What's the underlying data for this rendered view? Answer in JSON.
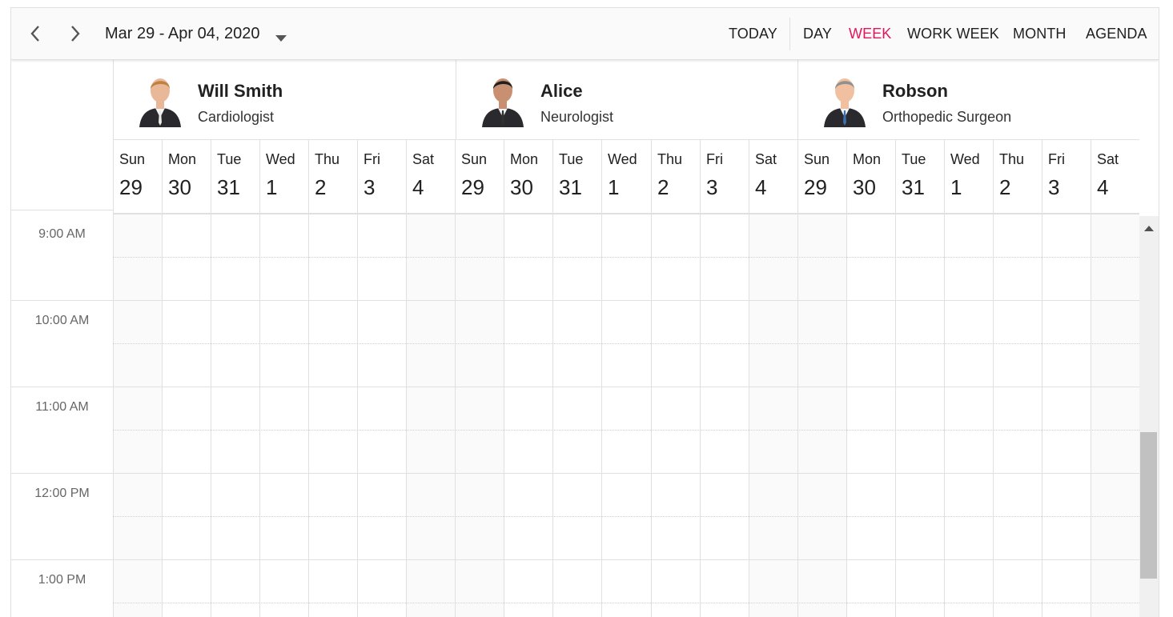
{
  "toolbar": {
    "date_range": "Mar 29 - Apr 04, 2020",
    "today_label": "TODAY",
    "views": [
      {
        "label": "DAY",
        "active": false
      },
      {
        "label": "WEEK",
        "active": true
      },
      {
        "label": "WORK WEEK",
        "active": false
      },
      {
        "label": "MONTH",
        "active": false
      },
      {
        "label": "AGENDA",
        "active": false
      }
    ],
    "active_color": "#e3165b"
  },
  "resources": [
    {
      "name": "Will Smith",
      "role": "Cardiologist"
    },
    {
      "name": "Alice",
      "role": "Neurologist"
    },
    {
      "name": "Robson",
      "role": "Orthopedic Surgeon"
    }
  ],
  "days": [
    {
      "name": "Sun",
      "num": "29"
    },
    {
      "name": "Mon",
      "num": "30"
    },
    {
      "name": "Tue",
      "num": "31"
    },
    {
      "name": "Wed",
      "num": "1"
    },
    {
      "name": "Thu",
      "num": "2"
    },
    {
      "name": "Fri",
      "num": "3"
    },
    {
      "name": "Sat",
      "num": "4"
    }
  ],
  "times": [
    "9:00 AM",
    "10:00 AM",
    "11:00 AM",
    "12:00 PM",
    "1:00 PM"
  ],
  "icons": {
    "prev": "chevron-left-icon",
    "next": "chevron-right-icon",
    "caret": "caret-down-icon",
    "scroll_up": "scroll-up-arrow-icon"
  }
}
